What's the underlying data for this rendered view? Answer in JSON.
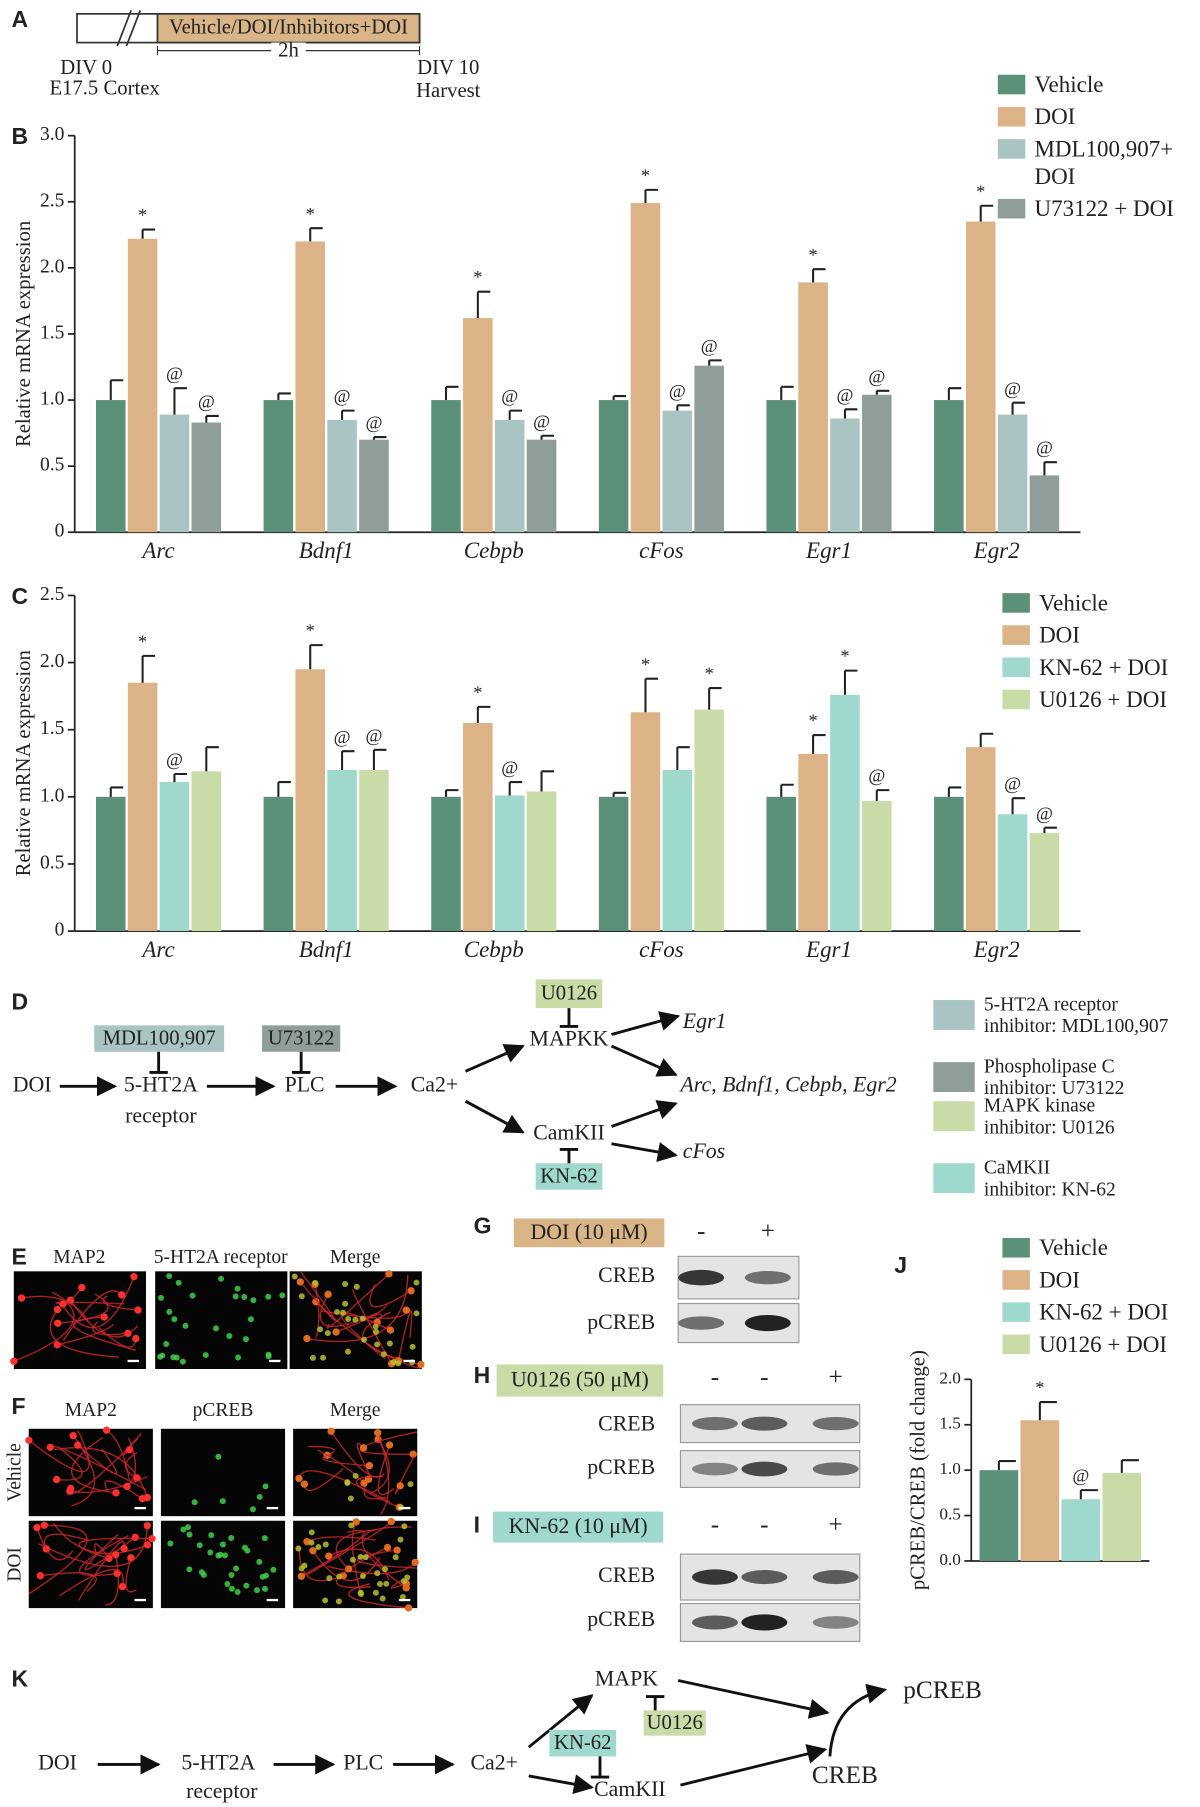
{
  "panel_labels": [
    "A",
    "B",
    "C",
    "D",
    "E",
    "F",
    "G",
    "H",
    "I",
    "J",
    "K"
  ],
  "timeline": {
    "bar_label": "Vehicle/DOI/Inhibitors+DOI",
    "duration": "2h",
    "start": [
      "DIV 0",
      "E17.5 Cortex"
    ],
    "end": [
      "DIV 10",
      "Harvest"
    ]
  },
  "chart_data": [
    {
      "type": "bar",
      "y_label": "Relative mRNA expression",
      "categories": [
        "Arc",
        "Bdnf1",
        "Cebpb",
        "cFos",
        "Egr1",
        "Egr2"
      ],
      "ylim": [
        0,
        3
      ],
      "yticks": [
        0,
        0.5,
        {
          "value": 1,
          "label": "1.0"
        },
        1.5,
        {
          "value": 2,
          "label": "2.0"
        },
        2.5,
        {
          "value": 3,
          "label": "3.0"
        }
      ],
      "series": [
        {
          "name": "Vehicle",
          "color": "#5b9079",
          "values": [
            1.0,
            1.0,
            1.0,
            1.0,
            1.0,
            1.0
          ],
          "errors": [
            0.15,
            0.05,
            0.1,
            0.03,
            0.1,
            0.09
          ],
          "markers": [
            null,
            null,
            null,
            null,
            null,
            null
          ]
        },
        {
          "name": "DOI",
          "color": "#dcb287",
          "values": [
            2.22,
            2.2,
            1.62,
            2.49,
            1.89,
            2.35
          ],
          "errors": [
            0.07,
            0.1,
            0.2,
            0.1,
            0.1,
            0.12
          ],
          "markers": [
            "*",
            "*",
            "*",
            "*",
            "*",
            "*"
          ]
        },
        {
          "name": "MDL100,907+ DOI",
          "color": "#a9c4c3",
          "values": [
            0.89,
            0.85,
            0.85,
            0.92,
            0.86,
            0.89
          ],
          "errors": [
            0.2,
            0.07,
            0.07,
            0.04,
            0.07,
            0.09
          ],
          "markers": [
            "@",
            "@",
            "@",
            "@",
            "@",
            "@"
          ]
        },
        {
          "name": "U73122 + DOI",
          "color": "#8f9e98",
          "values": [
            0.83,
            0.7,
            0.7,
            1.26,
            1.04,
            0.43
          ],
          "errors": [
            0.05,
            0.02,
            0.03,
            0.04,
            0.03,
            0.1
          ],
          "markers": [
            "@",
            "@",
            "@",
            "@",
            "@",
            "@"
          ]
        }
      ]
    },
    {
      "type": "bar",
      "y_label": "Relative mRNA expression",
      "categories": [
        "Arc",
        "Bdnf1",
        "Cebpb",
        "cFos",
        "Egr1",
        "Egr2"
      ],
      "ylim": [
        0,
        2.5
      ],
      "yticks": [
        0,
        0.5,
        {
          "value": 1,
          "label": "1.0"
        },
        1.5,
        {
          "value": 2,
          "label": "2.0"
        },
        2.5
      ],
      "series": [
        {
          "name": "Vehicle",
          "color": "#5b9079",
          "values": [
            1.0,
            1.0,
            1.0,
            1.0,
            1.0,
            1.0
          ],
          "errors": [
            0.07,
            0.11,
            0.05,
            0.03,
            0.09,
            0.07
          ],
          "markers": [
            null,
            null,
            null,
            null,
            null,
            null
          ]
        },
        {
          "name": "DOI",
          "color": "#dcb287",
          "values": [
            1.85,
            1.95,
            1.55,
            1.63,
            1.32,
            1.37
          ],
          "errors": [
            0.2,
            0.18,
            0.12,
            0.25,
            0.14,
            0.1
          ],
          "markers": [
            "*",
            "*",
            "*",
            "*",
            "*",
            null
          ]
        },
        {
          "name": "KN-62 + DOI",
          "color": "#9fd8cc",
          "values": [
            1.11,
            1.2,
            1.01,
            1.2,
            1.76,
            0.87
          ],
          "errors": [
            0.06,
            0.14,
            0.1,
            0.17,
            0.18,
            0.12
          ],
          "markers": [
            "@",
            "@",
            "@",
            null,
            "*",
            "@"
          ]
        },
        {
          "name": "U0126 + DOI",
          "color": "#c9dca8",
          "values": [
            1.19,
            1.2,
            1.04,
            1.65,
            0.97,
            0.73
          ],
          "errors": [
            0.18,
            0.15,
            0.15,
            0.16,
            0.08,
            0.04
          ],
          "markers": [
            null,
            "@",
            null,
            "*",
            "@",
            "@"
          ]
        }
      ]
    },
    {
      "type": "bar",
      "y_label": "pCREB/CREB (fold change)",
      "categories": [
        null
      ],
      "ylim": [
        0,
        2
      ],
      "yticks": [
        {
          "value": 0,
          "label": "0.0"
        },
        0.5,
        {
          "value": 1,
          "label": "1.0"
        },
        1.5,
        {
          "value": 2,
          "label": "2.0"
        }
      ],
      "series": [
        {
          "name": "Vehicle",
          "color": "#5b9079",
          "values": [
            1.0
          ],
          "errors": [
            0.1
          ],
          "markers": [
            null
          ]
        },
        {
          "name": "DOI",
          "color": "#dcb287",
          "values": [
            1.55
          ],
          "errors": [
            0.2
          ],
          "markers": [
            "*"
          ]
        },
        {
          "name": "KN-62 + DOI",
          "color": "#9fd8cc",
          "values": [
            0.68
          ],
          "errors": [
            0.1
          ],
          "markers": [
            "@"
          ]
        },
        {
          "name": "U0126 + DOI",
          "color": "#c9dca8",
          "values": [
            0.97
          ],
          "errors": [
            0.14
          ],
          "markers": [
            null
          ]
        }
      ]
    }
  ],
  "pathway_d": {
    "nodes": [
      "DOI",
      [
        "5-HT2A",
        "receptor"
      ],
      "PLC",
      "Ca2+",
      "MAPKK",
      "CamKII",
      "Egr1",
      "Arc, Bdnf1, Cebpb, Egr2",
      "cFos"
    ],
    "inhibitors": [
      "MDL100,907",
      "U73122",
      "U0126",
      "KN-62"
    ],
    "legend": [
      [
        "5-HT2A receptor",
        "inhibitor: MDL100,907"
      ],
      [
        "Phospholipase C",
        "inhibitor: U73122"
      ],
      [
        "MAPK kinase",
        "inhibitor: U0126"
      ],
      [
        "CaMKII",
        "inhibitor: KN-62"
      ]
    ]
  },
  "imaging": {
    "e_columns": [
      "MAP2",
      "5-HT2A receptor",
      "Merge"
    ],
    "f_columns": [
      "MAP2",
      "pCREB",
      "Merge"
    ],
    "f_rows": [
      "Vehicle",
      "DOI"
    ]
  },
  "blots": [
    {
      "treatment": "DOI (10 μM)",
      "lanes": [
        "-",
        "+"
      ],
      "rows": [
        "CREB",
        "pCREB"
      ]
    },
    {
      "treatment": "U0126 (50 μM)",
      "lanes": [
        "-",
        "-",
        "+"
      ],
      "rows": [
        "CREB",
        "pCREB"
      ]
    },
    {
      "treatment": "KN-62 (10 μM)",
      "lanes": [
        "-",
        "-",
        "+"
      ],
      "rows": [
        "CREB",
        "pCREB"
      ]
    }
  ],
  "pathway_k": {
    "nodes": [
      "DOI",
      [
        "5-HT2A",
        "receptor"
      ],
      "PLC",
      "Ca2+",
      "MAPK",
      "CamKII",
      "CREB",
      "pCREB"
    ],
    "inhibitors": [
      "U0126",
      "KN-62"
    ]
  }
}
